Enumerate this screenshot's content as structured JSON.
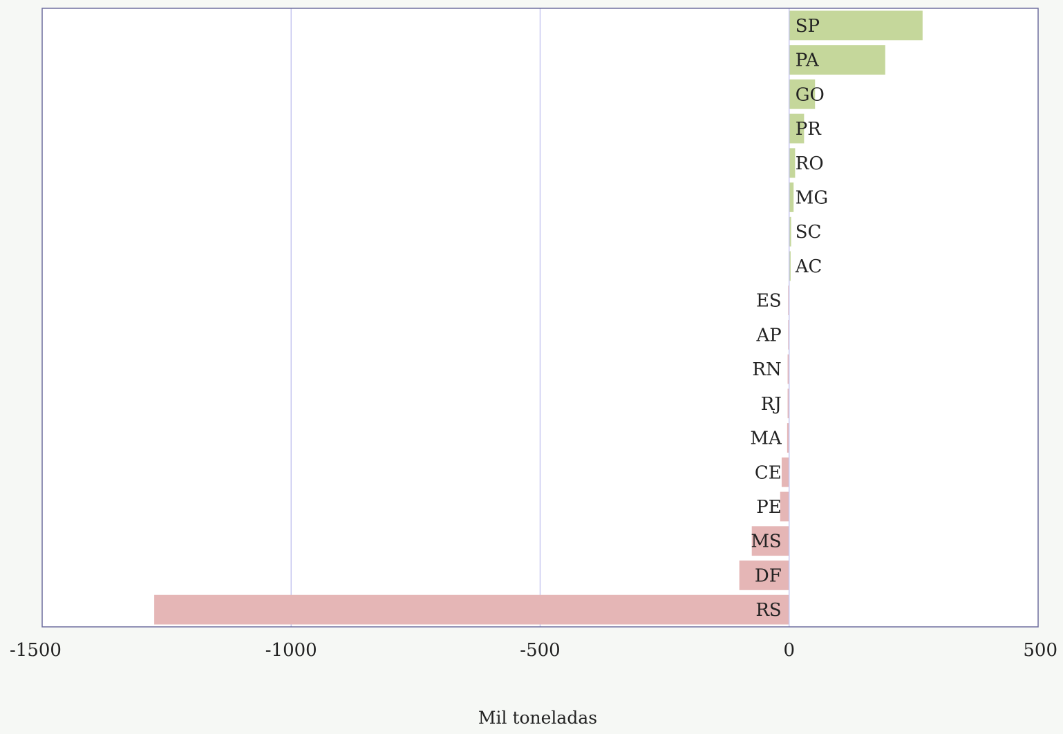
{
  "chart_data": {
    "type": "bar",
    "orientation": "horizontal",
    "xlabel": "Mil toneladas",
    "xlim": [
      -1500,
      500
    ],
    "xticks": [
      -1500,
      -1000,
      -500,
      0,
      500
    ],
    "xtick_labels": [
      "-1500",
      "-1000",
      "-500",
      "0",
      "500"
    ],
    "grid": "vertical lines at x ticks",
    "categories": [
      "SP",
      "PA",
      "GO",
      "PR",
      "RO",
      "MG",
      "SC",
      "AC",
      "ES",
      "AP",
      "RN",
      "RJ",
      "MA",
      "CE",
      "PE",
      "MS",
      "DF",
      "RS"
    ],
    "values": [
      268,
      193,
      52,
      30,
      12,
      9,
      4,
      3,
      -2,
      -2,
      -3,
      -3,
      -4,
      -15,
      -18,
      -75,
      -100,
      -1275
    ],
    "colors": {
      "positive": "#c5d79b",
      "negative": "#e5b6b6",
      "grid": "#c8c8f0",
      "frame": "#6e6e9e",
      "plot_background": "#ffffff",
      "page_background": "#f6f8f5"
    }
  }
}
